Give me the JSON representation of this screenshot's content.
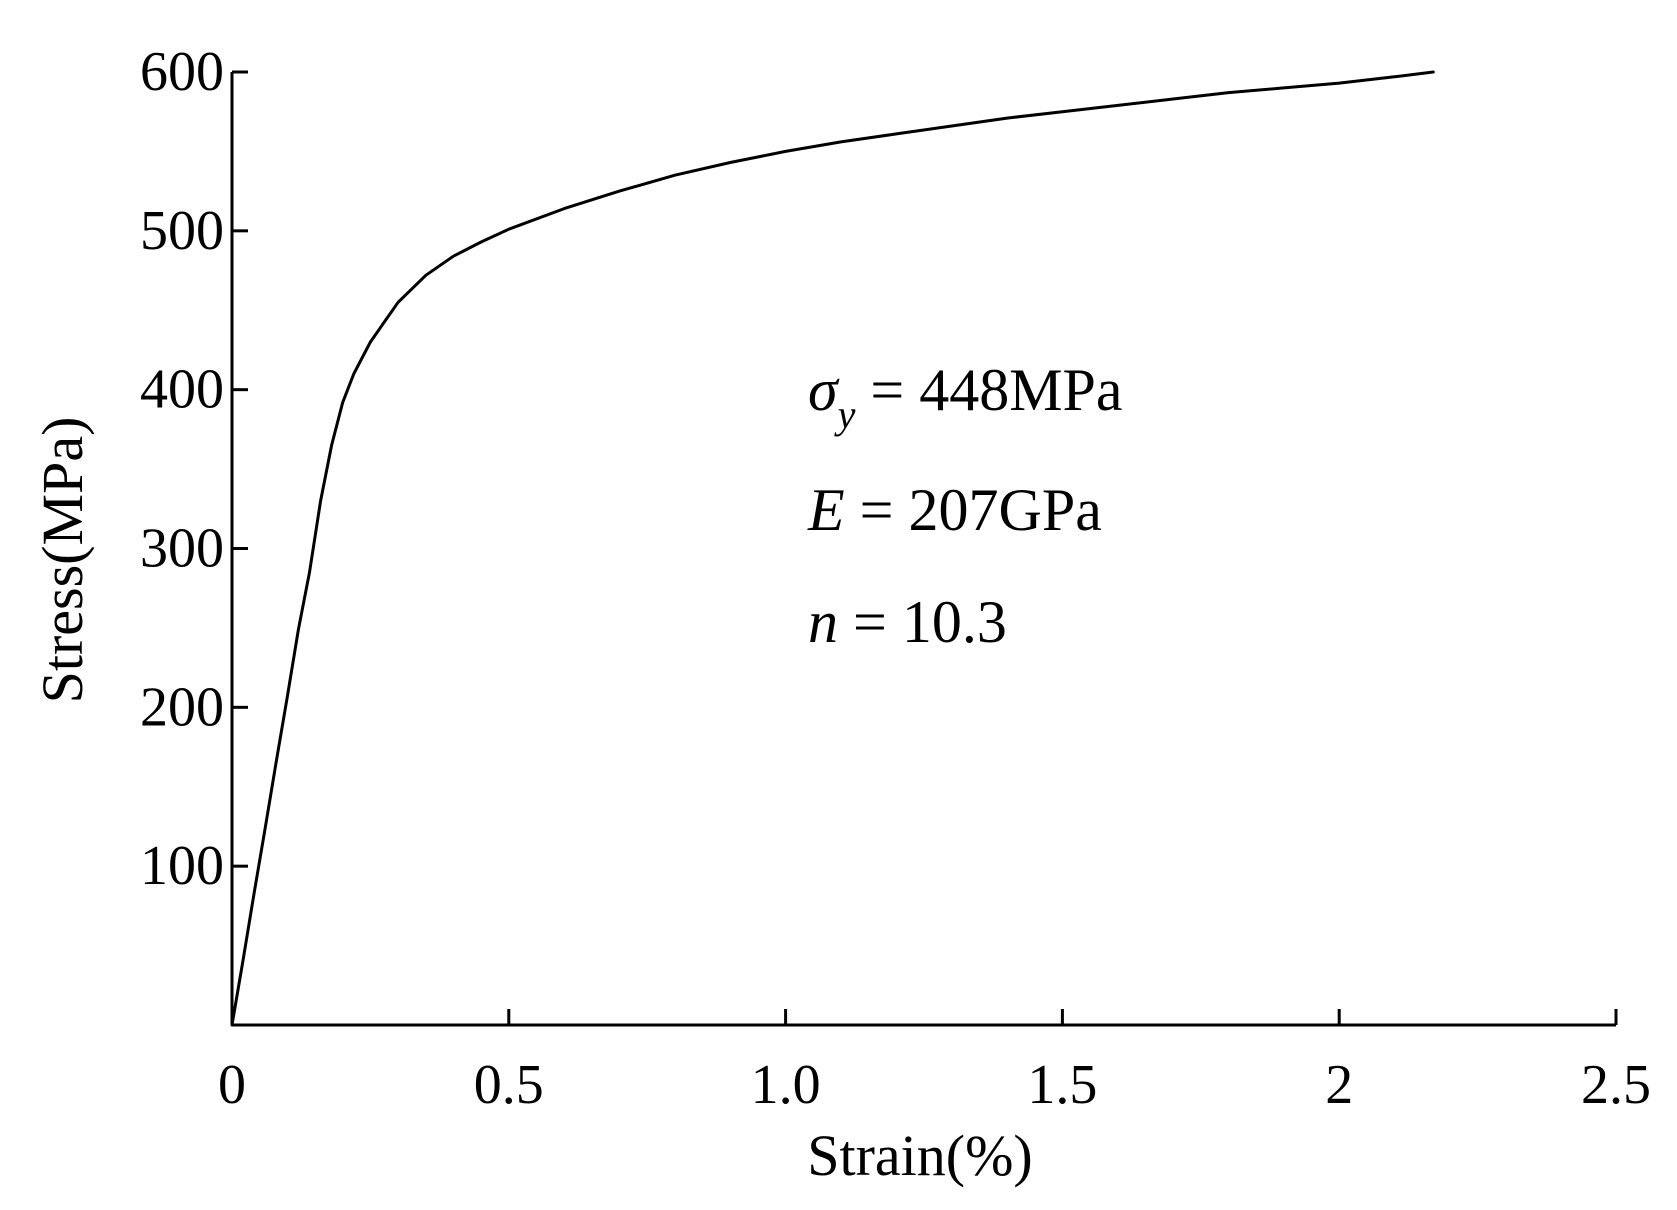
{
  "chart_data": {
    "type": "line",
    "title": "",
    "xlabel": "Strain(%)",
    "ylabel": "Stress(MPa)",
    "xlim": [
      0,
      2.5
    ],
    "ylim": [
      0,
      600
    ],
    "x_ticks": [
      0,
      0.5,
      1.0,
      1.5,
      2,
      2.5
    ],
    "x_tick_labels": [
      "0",
      "0.5",
      "1.0",
      "1.5",
      "2",
      "2.5"
    ],
    "y_ticks": [
      100,
      200,
      300,
      400,
      500,
      600
    ],
    "y_tick_labels": [
      "100",
      "200",
      "300",
      "400",
      "500",
      "600"
    ],
    "grid": false,
    "legend": "none",
    "line_color": "#000000",
    "series": [
      {
        "x": [
          0,
          0.02,
          0.04,
          0.06,
          0.08,
          0.1,
          0.12,
          0.14,
          0.16,
          0.18,
          0.2,
          0.22,
          0.25,
          0.3,
          0.35,
          0.4,
          0.45,
          0.5,
          0.6,
          0.7,
          0.8,
          0.9,
          1.0,
          1.1,
          1.2,
          1.3,
          1.4,
          1.5,
          1.6,
          1.7,
          1.8,
          1.9,
          2.0,
          2.1,
          2.17
        ],
        "values": [
          0,
          41,
          83,
          124,
          166,
          207,
          249,
          285,
          330,
          365,
          392,
          410,
          430,
          455,
          472,
          484,
          493,
          501,
          514,
          525,
          535,
          543,
          550,
          556,
          561,
          566,
          571,
          575,
          579,
          583,
          587,
          590,
          593,
          597,
          600
        ]
      }
    ],
    "annotations": [
      {
        "symbol": "σ",
        "subscript": "y",
        "text": " = 448MPa"
      },
      {
        "symbol": "E",
        "subscript": "",
        "text": " = 207GPa"
      },
      {
        "symbol": "n",
        "subscript": "",
        "text": " = 10.3"
      }
    ]
  }
}
